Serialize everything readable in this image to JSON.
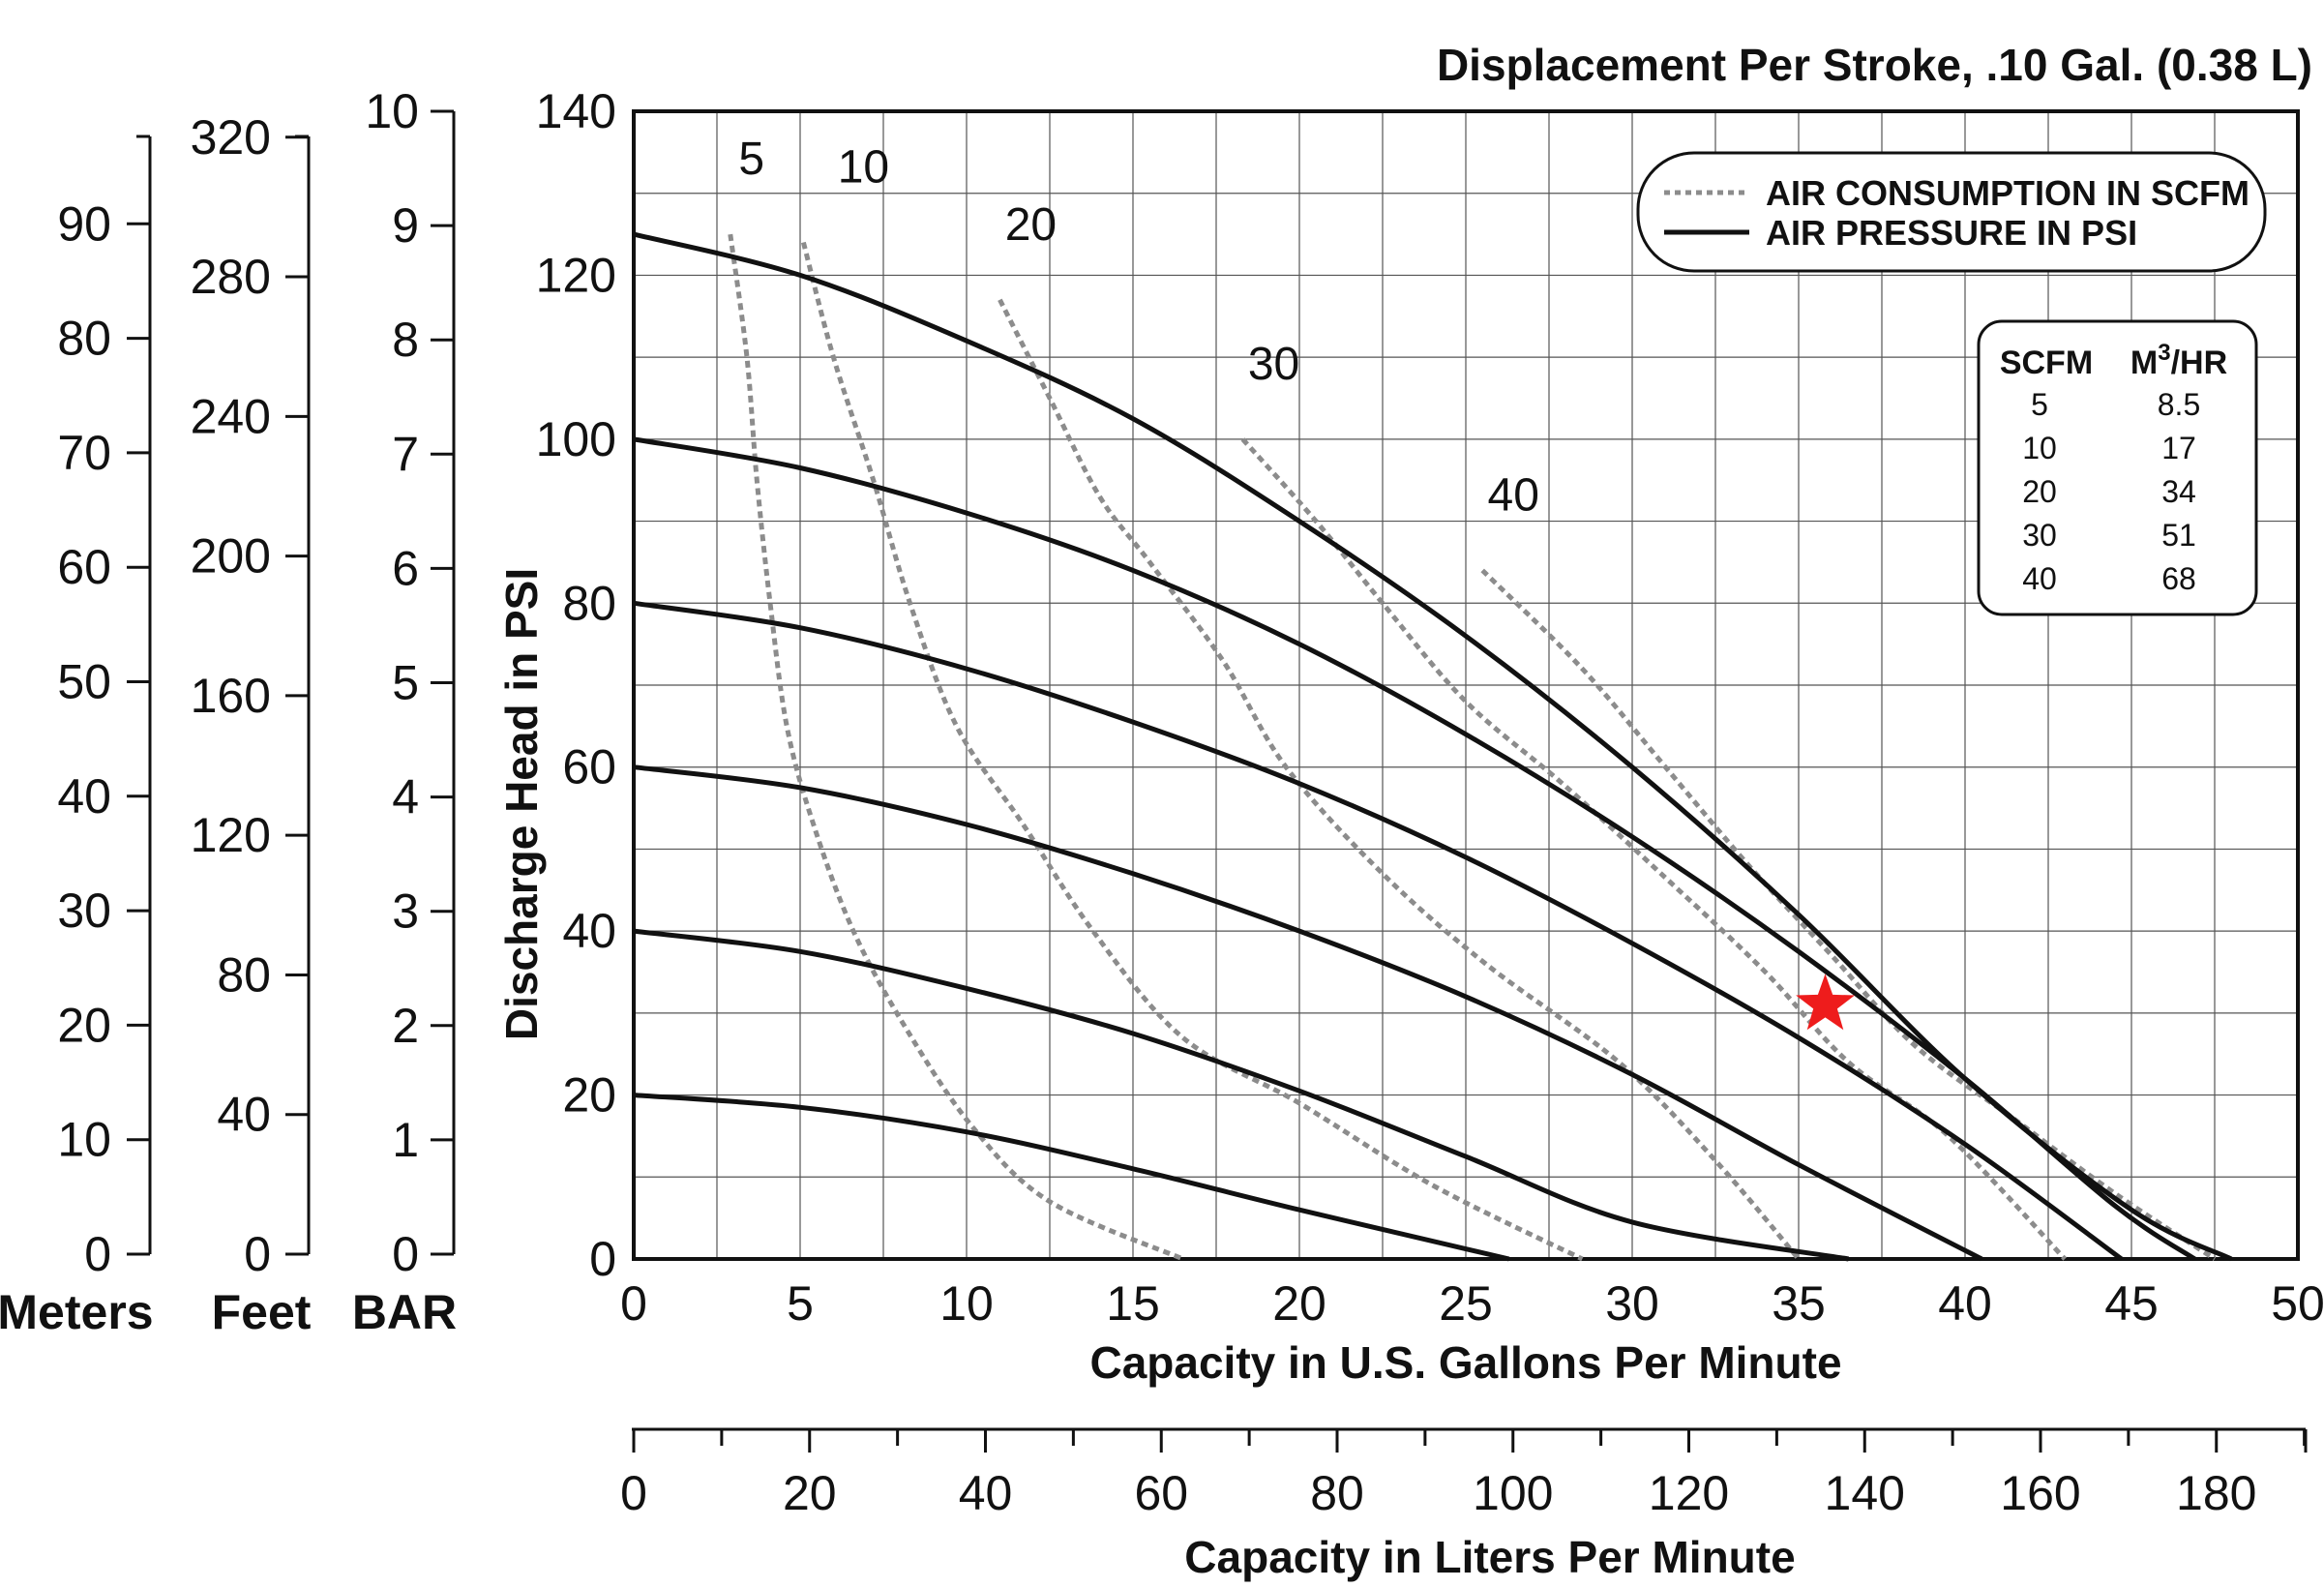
{
  "chart_data": {
    "type": "line",
    "title": "Displacement Per Stroke, .10 Gal. (0.38 L)",
    "xlabel": "Capacity in U.S. Gallons Per Minute",
    "ylabel": "Discharge Head in PSI",
    "xlim": [
      0,
      50
    ],
    "ylim": [
      0,
      140
    ],
    "x_ticks": [
      0,
      5,
      10,
      15,
      20,
      25,
      30,
      35,
      40,
      45,
      50
    ],
    "y_ticks": [
      0,
      20,
      40,
      60,
      80,
      100,
      120,
      140
    ],
    "grid": true,
    "secondary_x_axis": {
      "label": "Capacity in Liters Per Minute",
      "ticks": [
        0,
        20,
        40,
        60,
        80,
        100,
        120,
        140,
        160,
        180
      ]
    },
    "left_axes": [
      {
        "label": "Meters",
        "ticks": [
          0,
          10,
          20,
          30,
          40,
          50,
          60,
          70,
          80,
          90
        ]
      },
      {
        "label": "Feet",
        "ticks": [
          0,
          40,
          80,
          120,
          160,
          200,
          240,
          280,
          320
        ]
      },
      {
        "label": "BAR",
        "ticks": [
          0,
          1,
          2,
          3,
          4,
          5,
          6,
          7,
          8,
          9,
          10
        ]
      }
    ],
    "legend": {
      "position": "top-right",
      "entries": [
        {
          "label": "AIR CONSUMPTION IN SCFM",
          "style": "dotted"
        },
        {
          "label": "AIR PRESSURE IN PSI",
          "style": "solid"
        }
      ]
    },
    "conversion_table": {
      "headers": [
        "SCFM",
        "M",
        "3",
        "/HR"
      ],
      "rows": [
        [
          "5",
          "8.5"
        ],
        [
          "10",
          "17"
        ],
        [
          "20",
          "34"
        ],
        [
          "30",
          "51"
        ],
        [
          "40",
          "68"
        ]
      ]
    },
    "pressure_series": [
      {
        "name": "20 PSI",
        "points": [
          [
            0,
            20
          ],
          [
            5,
            18.5
          ],
          [
            10,
            15.5
          ],
          [
            15,
            11
          ],
          [
            20,
            6
          ],
          [
            26.3,
            0
          ]
        ]
      },
      {
        "name": "40 PSI",
        "points": [
          [
            0,
            40
          ],
          [
            5,
            37.5
          ],
          [
            10,
            33
          ],
          [
            15,
            27.5
          ],
          [
            20,
            20.5
          ],
          [
            25,
            12.5
          ],
          [
            30,
            4.5
          ],
          [
            36.5,
            0
          ]
        ]
      },
      {
        "name": "60 PSI",
        "points": [
          [
            0,
            60
          ],
          [
            5,
            57.5
          ],
          [
            10,
            53
          ],
          [
            15,
            47
          ],
          [
            20,
            40
          ],
          [
            25,
            32
          ],
          [
            30,
            22.5
          ],
          [
            35,
            11.5
          ],
          [
            40.5,
            0
          ]
        ]
      },
      {
        "name": "80 PSI",
        "points": [
          [
            0,
            80
          ],
          [
            5,
            77
          ],
          [
            10,
            72
          ],
          [
            15,
            65.5
          ],
          [
            20,
            58
          ],
          [
            25,
            49
          ],
          [
            30,
            38.5
          ],
          [
            35,
            27
          ],
          [
            40,
            14
          ],
          [
            44.7,
            0
          ]
        ]
      },
      {
        "name": "100 PSI",
        "points": [
          [
            0,
            100
          ],
          [
            5,
            96.5
          ],
          [
            10,
            91
          ],
          [
            15,
            84
          ],
          [
            20,
            75
          ],
          [
            25,
            64
          ],
          [
            30,
            51.5
          ],
          [
            35,
            37.5
          ],
          [
            40,
            22
          ],
          [
            44.5,
            6.5
          ],
          [
            46.9,
            0
          ]
        ]
      },
      {
        "name": "125 PSI",
        "points": [
          [
            0,
            125
          ],
          [
            5,
            120
          ],
          [
            10,
            112
          ],
          [
            15,
            102.5
          ],
          [
            20,
            90
          ],
          [
            25,
            76
          ],
          [
            30,
            60
          ],
          [
            35,
            42
          ],
          [
            40,
            22
          ],
          [
            45,
            6
          ],
          [
            48,
            0
          ]
        ]
      }
    ],
    "air_series": [
      {
        "name": "5 SCFM",
        "label": "5",
        "points": [
          [
            2.9,
            125
          ],
          [
            3.4,
            110
          ],
          [
            3.7,
            95
          ],
          [
            4.1,
            80
          ],
          [
            4.6,
            65
          ],
          [
            5.4,
            53
          ],
          [
            6.6,
            40
          ],
          [
            8.2,
            28
          ],
          [
            10.2,
            16
          ],
          [
            12.5,
            7
          ],
          [
            16.5,
            0
          ]
        ]
      },
      {
        "name": "10 SCFM",
        "label": "10",
        "points": [
          [
            5.1,
            124
          ],
          [
            6,
            110
          ],
          [
            7.2,
            95
          ],
          [
            8.3,
            80
          ],
          [
            9.7,
            65
          ],
          [
            11.7,
            53
          ],
          [
            13.8,
            40
          ],
          [
            16.5,
            27
          ],
          [
            20,
            19
          ],
          [
            24,
            9
          ],
          [
            28.5,
            0
          ]
        ]
      },
      {
        "name": "20 SCFM",
        "label": "20",
        "points": [
          [
            11,
            117
          ],
          [
            12.5,
            105
          ],
          [
            14,
            93
          ],
          [
            15.5,
            85
          ],
          [
            17.7,
            73
          ],
          [
            19.6,
            60
          ],
          [
            22.5,
            47
          ],
          [
            25.6,
            36
          ],
          [
            29.6,
            24
          ],
          [
            32.5,
            12
          ],
          [
            35,
            0
          ]
        ]
      },
      {
        "name": "30 SCFM",
        "label": "30",
        "points": [
          [
            18.3,
            100
          ],
          [
            20.5,
            90
          ],
          [
            22.5,
            80
          ],
          [
            25,
            68
          ],
          [
            27.9,
            58
          ],
          [
            31,
            46.5
          ],
          [
            34,
            35
          ],
          [
            36.5,
            24
          ],
          [
            39.5,
            15
          ],
          [
            43,
            0
          ]
        ]
      },
      {
        "name": "40 SCFM",
        "label": "40",
        "points": [
          [
            25.5,
            84
          ],
          [
            28.5,
            72
          ],
          [
            31,
            60
          ],
          [
            33.5,
            48
          ],
          [
            36,
            37
          ],
          [
            38.5,
            26
          ],
          [
            41.5,
            17
          ],
          [
            44.5,
            8
          ],
          [
            47.5,
            0
          ]
        ]
      }
    ],
    "operating_point": {
      "x": 35.8,
      "y": 31,
      "marker": "red-star"
    }
  }
}
